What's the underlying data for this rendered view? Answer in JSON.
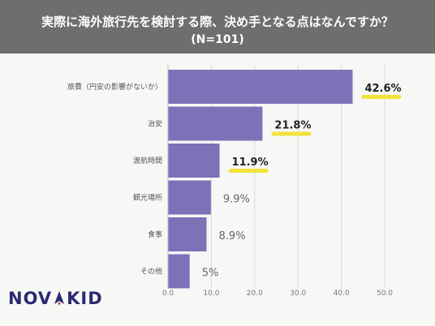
{
  "header": {
    "title": "実際に海外旅行先を検討する際、決め手となる点はなんですか？",
    "subtitle": "(N=101)"
  },
  "colors": {
    "bar": "#7d71b8",
    "highlight": "#f3e23c",
    "header_bg": "#6e6e6e",
    "logo": "#2b2a72",
    "logo_accent": "#e8473c"
  },
  "logo_text": "NOVAKID",
  "chart_data": {
    "type": "bar",
    "orientation": "horizontal",
    "categories": [
      "旅費（円安の影響がないか）",
      "治安",
      "渡航時間",
      "観光場所",
      "食事",
      "その他"
    ],
    "values": [
      42.6,
      21.8,
      11.9,
      9.9,
      8.9,
      5
    ],
    "value_labels": [
      "42.6%",
      "21.8%",
      "11.9%",
      "9.9%",
      "8.9%",
      "5%"
    ],
    "highlighted": [
      true,
      true,
      true,
      false,
      false,
      false
    ],
    "xlim": [
      0,
      50
    ],
    "xticks": [
      "0.0",
      "10.0",
      "20.0",
      "30.0",
      "40.0",
      "50.0"
    ],
    "grid": true
  }
}
